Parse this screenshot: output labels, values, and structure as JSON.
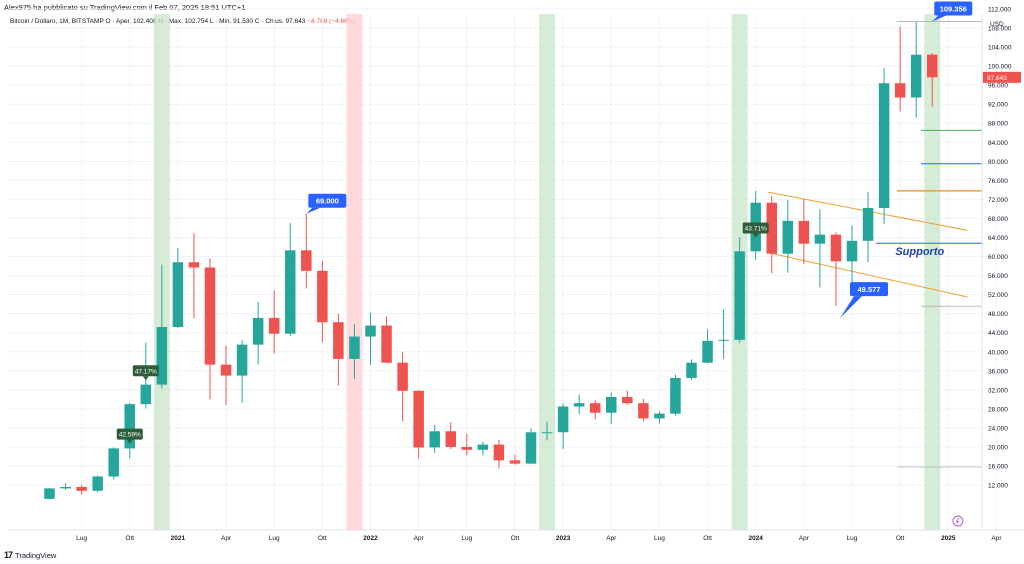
{
  "header": {
    "published_by": "Alex975 ha pubblicato su TradingView.com il Feb 07, 2025 18:51 UTC+1"
  },
  "info": {
    "symbol": "Bitcoin / Dollaro, 1M, BITSTAMP",
    "ohlc": "O · Aper. 102.408  H · Max. 102.754  L · Min. 91.530  C · Chius. 97.643",
    "change": "−4.769 (−4.66%)"
  },
  "footer": {
    "brand": "TradingView"
  },
  "colors": {
    "up": "#26a69a",
    "down": "#ef5350",
    "green_band": "#c8e6c9",
    "red_band": "#ffcdd2",
    "label_blue": "#2962ff",
    "label_dark": "#2e5d3a",
    "orange": "#f0a030",
    "support_blue": "#2962ff",
    "green_line": "#4caf50"
  },
  "chart_data": {
    "type": "candlestick",
    "currency_label": "USD",
    "y_ticks": [
      "12.000",
      "16.000",
      "20.000",
      "24.000",
      "28.000",
      "32.000",
      "36.000",
      "40.000",
      "44.000",
      "48.000",
      "52.000",
      "56.000",
      "60.000",
      "64.000",
      "68.000",
      "72.000",
      "76.000",
      "80.000",
      "84.000",
      "88.000",
      "92.000",
      "96.000",
      "100.000",
      "104.000",
      "108.000",
      "112.000"
    ],
    "ylim": [
      10000,
      116000
    ],
    "x_ticks": [
      {
        "label": "Lug",
        "idx": 2
      },
      {
        "label": "Ott",
        "idx": 5
      },
      {
        "label": "2021",
        "idx": 8
      },
      {
        "label": "Apr",
        "idx": 11
      },
      {
        "label": "Lug",
        "idx": 14
      },
      {
        "label": "Ott",
        "idx": 17
      },
      {
        "label": "2022",
        "idx": 20
      },
      {
        "label": "Apr",
        "idx": 23
      },
      {
        "label": "Lug",
        "idx": 26
      },
      {
        "label": "Ott",
        "idx": 29
      },
      {
        "label": "2023",
        "idx": 32
      },
      {
        "label": "Apr",
        "idx": 35
      },
      {
        "label": "Lug",
        "idx": 38
      },
      {
        "label": "Ott",
        "idx": 41
      },
      {
        "label": "2024",
        "idx": 44
      },
      {
        "label": "Apr",
        "idx": 47
      },
      {
        "label": "Lug",
        "idx": 50
      },
      {
        "label": "Ott",
        "idx": 53
      },
      {
        "label": "2025",
        "idx": 56
      },
      {
        "label": "Apr",
        "idx": 59
      }
    ],
    "candles": [
      {
        "m": "2020-07",
        "o": 9100,
        "h": 11400,
        "l": 9000,
        "c": 11300
      },
      {
        "m": "2020-08",
        "o": 11300,
        "h": 12400,
        "l": 11000,
        "c": 11600
      },
      {
        "m": "2020-09",
        "o": 11600,
        "h": 12000,
        "l": 10000,
        "c": 10800
      },
      {
        "m": "2020-10",
        "o": 10800,
        "h": 14000,
        "l": 10500,
        "c": 13800
      },
      {
        "m": "2020-11",
        "o": 13800,
        "h": 19900,
        "l": 13200,
        "c": 19700
      },
      {
        "m": "2020-12",
        "o": 19700,
        "h": 29300,
        "l": 17600,
        "c": 29000
      },
      {
        "m": "2021-01",
        "o": 29000,
        "h": 41900,
        "l": 28100,
        "c": 33100
      },
      {
        "m": "2021-02",
        "o": 33100,
        "h": 58300,
        "l": 32300,
        "c": 45200
      },
      {
        "m": "2021-03",
        "o": 45200,
        "h": 61800,
        "l": 45000,
        "c": 58800
      },
      {
        "m": "2021-04",
        "o": 58800,
        "h": 64900,
        "l": 47000,
        "c": 57700
      },
      {
        "m": "2021-05",
        "o": 57700,
        "h": 59600,
        "l": 30000,
        "c": 37300
      },
      {
        "m": "2021-06",
        "o": 37300,
        "h": 41300,
        "l": 28800,
        "c": 35000
      },
      {
        "m": "2021-07",
        "o": 35000,
        "h": 42400,
        "l": 29300,
        "c": 41500
      },
      {
        "m": "2021-08",
        "o": 41500,
        "h": 50500,
        "l": 37300,
        "c": 47100
      },
      {
        "m": "2021-09",
        "o": 47100,
        "h": 52900,
        "l": 39600,
        "c": 43800
      },
      {
        "m": "2021-10",
        "o": 43800,
        "h": 67000,
        "l": 43300,
        "c": 61300
      },
      {
        "m": "2021-11",
        "o": 61300,
        "h": 69000,
        "l": 53300,
        "c": 57000
      },
      {
        "m": "2021-12",
        "o": 57000,
        "h": 59100,
        "l": 42000,
        "c": 46200
      },
      {
        "m": "2022-01",
        "o": 46200,
        "h": 48000,
        "l": 32900,
        "c": 38500
      },
      {
        "m": "2022-02",
        "o": 38500,
        "h": 45800,
        "l": 34300,
        "c": 43200
      },
      {
        "m": "2022-03",
        "o": 43200,
        "h": 48200,
        "l": 37200,
        "c": 45500
      },
      {
        "m": "2022-04",
        "o": 45500,
        "h": 47400,
        "l": 37700,
        "c": 37700
      },
      {
        "m": "2022-05",
        "o": 37700,
        "h": 40000,
        "l": 25400,
        "c": 31800
      },
      {
        "m": "2022-06",
        "o": 31800,
        "h": 31900,
        "l": 17600,
        "c": 19900
      },
      {
        "m": "2022-07",
        "o": 19900,
        "h": 24600,
        "l": 18800,
        "c": 23300
      },
      {
        "m": "2022-08",
        "o": 23300,
        "h": 25200,
        "l": 19600,
        "c": 20000
      },
      {
        "m": "2022-09",
        "o": 20000,
        "h": 22800,
        "l": 18200,
        "c": 19400
      },
      {
        "m": "2022-10",
        "o": 19400,
        "h": 21100,
        "l": 18200,
        "c": 20500
      },
      {
        "m": "2022-11",
        "o": 20500,
        "h": 21500,
        "l": 15500,
        "c": 17200
      },
      {
        "m": "2022-12",
        "o": 17200,
        "h": 18400,
        "l": 16300,
        "c": 16500
      },
      {
        "m": "2023-01",
        "o": 16500,
        "h": 23900,
        "l": 16500,
        "c": 23100
      },
      {
        "m": "2023-02",
        "o": 23100,
        "h": 25300,
        "l": 21400,
        "c": 23100
      },
      {
        "m": "2023-03",
        "o": 23100,
        "h": 29200,
        "l": 19600,
        "c": 28500
      },
      {
        "m": "2023-04",
        "o": 28500,
        "h": 31000,
        "l": 26900,
        "c": 29200
      },
      {
        "m": "2023-05",
        "o": 29200,
        "h": 29800,
        "l": 25800,
        "c": 27200
      },
      {
        "m": "2023-06",
        "o": 27200,
        "h": 31400,
        "l": 24800,
        "c": 30500
      },
      {
        "m": "2023-07",
        "o": 30500,
        "h": 31800,
        "l": 28900,
        "c": 29200
      },
      {
        "m": "2023-08",
        "o": 29200,
        "h": 30100,
        "l": 25400,
        "c": 26000
      },
      {
        "m": "2023-09",
        "o": 26000,
        "h": 27400,
        "l": 24900,
        "c": 27000
      },
      {
        "m": "2023-10",
        "o": 27000,
        "h": 35200,
        "l": 26600,
        "c": 34500
      },
      {
        "m": "2023-11",
        "o": 34500,
        "h": 38400,
        "l": 34100,
        "c": 37700
      },
      {
        "m": "2023-12",
        "o": 37700,
        "h": 44700,
        "l": 37600,
        "c": 42300
      },
      {
        "m": "2024-01",
        "o": 42300,
        "h": 48900,
        "l": 38500,
        "c": 42500
      },
      {
        "m": "2024-02",
        "o": 42500,
        "h": 64000,
        "l": 41900,
        "c": 61100
      },
      {
        "m": "2024-03",
        "o": 61100,
        "h": 73800,
        "l": 59300,
        "c": 71300
      },
      {
        "m": "2024-04",
        "o": 71300,
        "h": 72800,
        "l": 56500,
        "c": 60600
      },
      {
        "m": "2024-05",
        "o": 60600,
        "h": 71900,
        "l": 56600,
        "c": 67500
      },
      {
        "m": "2024-06",
        "o": 67500,
        "h": 72000,
        "l": 58400,
        "c": 62700
      },
      {
        "m": "2024-07",
        "o": 62700,
        "h": 70000,
        "l": 53500,
        "c": 64600
      },
      {
        "m": "2024-08",
        "o": 64600,
        "h": 65100,
        "l": 49577,
        "c": 59000
      },
      {
        "m": "2024-09",
        "o": 59000,
        "h": 66500,
        "l": 52500,
        "c": 63300
      },
      {
        "m": "2024-10",
        "o": 63300,
        "h": 73600,
        "l": 58800,
        "c": 70200
      },
      {
        "m": "2024-11",
        "o": 70200,
        "h": 99600,
        "l": 66800,
        "c": 96400
      },
      {
        "m": "2024-12",
        "o": 96400,
        "h": 108300,
        "l": 90500,
        "c": 93400
      },
      {
        "m": "2025-01",
        "o": 93400,
        "h": 109356,
        "l": 89200,
        "c": 102400
      },
      {
        "m": "2025-02",
        "o": 102408,
        "h": 102754,
        "l": 91530,
        "c": 97643
      }
    ],
    "bands": [
      {
        "idx": 7,
        "kind": "green"
      },
      {
        "idx": 19,
        "kind": "red"
      },
      {
        "idx": 31,
        "kind": "green"
      },
      {
        "idx": 43,
        "kind": "green"
      },
      {
        "idx": 55,
        "kind": "green"
      }
    ],
    "callouts": [
      {
        "text": "109.356",
        "idx": 55,
        "price": 109356,
        "kind": "blue",
        "dir": "below-left"
      },
      {
        "text": "69.000",
        "idx": 16,
        "price": 69000,
        "kind": "blue",
        "dir": "below-left"
      },
      {
        "text": "49.577",
        "idx": 50,
        "price": 49577,
        "kind": "blue",
        "dir": "above-left"
      },
      {
        "text": "47.17%",
        "idx": 6,
        "price": 33800,
        "kind": "dark"
      },
      {
        "text": "42.59%",
        "idx": 5,
        "price": 20500,
        "kind": "dark"
      },
      {
        "text": "43.71%",
        "idx": 44,
        "price": 63800,
        "kind": "dark"
      }
    ],
    "current_price_label": "97.643",
    "annotation_text": "Supporto",
    "hlines": [
      {
        "price": 109356,
        "from_idx": 52.8,
        "color": "#b0b0b0",
        "width": 0.8
      },
      {
        "price": 86500,
        "from_idx": 54.3,
        "color": "#4caf50",
        "width": 1
      },
      {
        "price": 79500,
        "from_idx": 54.3,
        "color": "#2962ff",
        "width": 1
      },
      {
        "price": 73800,
        "from_idx": 52.8,
        "color": "#f0a030",
        "width": 1.5
      },
      {
        "price": 62800,
        "from_idx": 51.5,
        "color": "#2962ff",
        "width": 1
      },
      {
        "price": 49577,
        "from_idx": 54.3,
        "color": "#b0b0b0",
        "width": 0.8
      },
      {
        "price": 15800,
        "from_idx": 52.8,
        "color": "#b0b0b0",
        "width": 0.8
      }
    ],
    "channel_lines": [
      {
        "x1": 44.8,
        "y1": 73500,
        "x2": 57.2,
        "y2": 65500
      },
      {
        "x1": 44.8,
        "y1": 60800,
        "x2": 57.2,
        "y2": 51500
      }
    ]
  }
}
